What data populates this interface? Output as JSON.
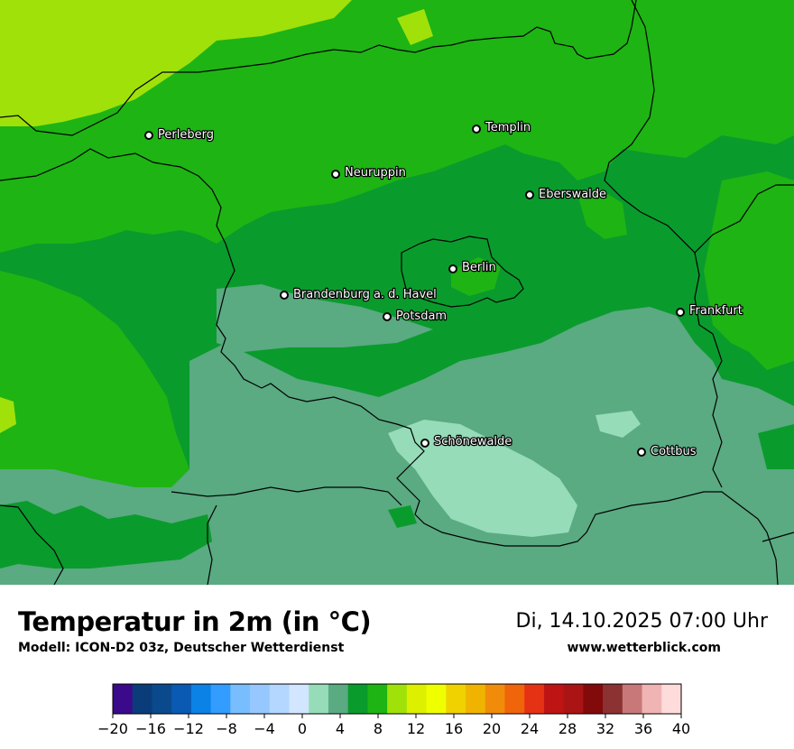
{
  "map": {
    "cities": [
      {
        "name": "Perleberg"
      },
      {
        "name": "Templin"
      },
      {
        "name": "Neuruppin"
      },
      {
        "name": "Eberswalde"
      },
      {
        "name": "Berlin"
      },
      {
        "name": "Brandenburg a. d. Havel"
      },
      {
        "name": "Potsdam"
      },
      {
        "name": "Frankfurt"
      },
      {
        "name": "Schönewalde"
      },
      {
        "name": "Cottbus"
      }
    ]
  },
  "footer": {
    "title": "Temperatur in 2m (in °C)",
    "model": "Modell: ICON-D2 03z, Deutscher Wetterdienst",
    "datetime": "Di, 14.10.2025 07:00 Uhr",
    "website": "www.wetterblick.com"
  },
  "legend": {
    "ticks": [
      "−20",
      "−16",
      "−12",
      "−8",
      "−4",
      "0",
      "4",
      "8",
      "12",
      "16",
      "20",
      "24",
      "28",
      "32",
      "36",
      "40"
    ],
    "colors": [
      "#3a0a8a",
      "#0a3c7a",
      "#0a4a8c",
      "#0a5ab4",
      "#0a82e6",
      "#329cff",
      "#78beff",
      "#96c8ff",
      "#b4d7ff",
      "#d2e6ff",
      "#96dcb9",
      "#5aaa82",
      "#0a9b2d",
      "#1eb414",
      "#a0e10a",
      "#dcf000",
      "#f0ff00",
      "#f0d200",
      "#f0b400",
      "#f08c0a",
      "#f0640a",
      "#e63214",
      "#be1414",
      "#aa1414",
      "#820a0a",
      "#8c3232",
      "#c87878",
      "#f0b4b4",
      "#ffdcdc"
    ]
  }
}
